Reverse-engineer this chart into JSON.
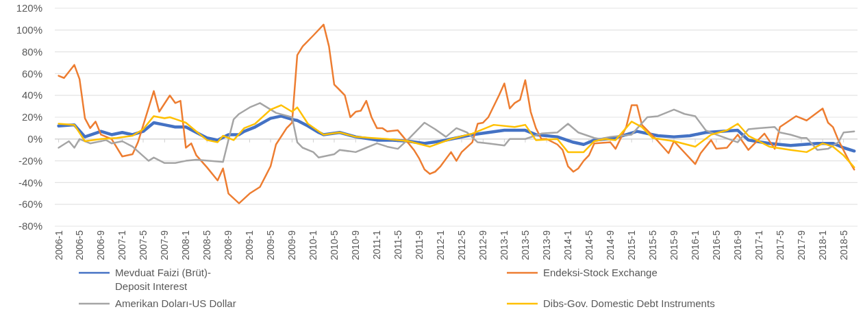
{
  "chart_data": {
    "type": "line",
    "xlim": [
      "2005-12-10",
      "2018-07-20"
    ],
    "xticks": [
      {
        "value": "2006-01",
        "label": "2006-1"
      },
      {
        "value": "2006-05",
        "label": "2006-5"
      },
      {
        "value": "2006-09",
        "label": "2006-9"
      },
      {
        "value": "2007-01",
        "label": "2007-1"
      },
      {
        "value": "2007-05",
        "label": "2007-5"
      },
      {
        "value": "2007-09",
        "label": "2007-9"
      },
      {
        "value": "2008-01",
        "label": "2008-1"
      },
      {
        "value": "2008-05",
        "label": "2008-5"
      },
      {
        "value": "2008-09",
        "label": "2008-9"
      },
      {
        "value": "2009-01",
        "label": "2009-1"
      },
      {
        "value": "2009-05",
        "label": "2009-5"
      },
      {
        "value": "2009-09",
        "label": "2009-9"
      },
      {
        "value": "2010-01",
        "label": "2010-1"
      },
      {
        "value": "2010-05",
        "label": "2010-5"
      },
      {
        "value": "2010-09",
        "label": "2010-9"
      },
      {
        "value": "2011-01",
        "label": "2011-1"
      },
      {
        "value": "2011-05",
        "label": "2011-5"
      },
      {
        "value": "2011-09",
        "label": "2011-9"
      },
      {
        "value": "2012-01",
        "label": "2012-1"
      },
      {
        "value": "2012-05",
        "label": "2012-5"
      },
      {
        "value": "2012-09",
        "label": "2012-9"
      },
      {
        "value": "2013-01",
        "label": "2013-1"
      },
      {
        "value": "2013-05",
        "label": "2013-5"
      },
      {
        "value": "2013-09",
        "label": "2013-9"
      },
      {
        "value": "2014-01",
        "label": "2014-1"
      },
      {
        "value": "2014-05",
        "label": "2014-5"
      },
      {
        "value": "2014-09",
        "label": "2014-9"
      },
      {
        "value": "2015-01",
        "label": "2015-1"
      },
      {
        "value": "2015-05",
        "label": "2015-5"
      },
      {
        "value": "2015-09",
        "label": "2015-9"
      },
      {
        "value": "2016-01",
        "label": "2016-1"
      },
      {
        "value": "2016-05",
        "label": "2016-5"
      },
      {
        "value": "2016-09",
        "label": "2016-9"
      },
      {
        "value": "2017-01",
        "label": "2017-1"
      },
      {
        "value": "2017-05",
        "label": "2017-5"
      },
      {
        "value": "2017-09",
        "label": "2017-9"
      },
      {
        "value": "2018-01",
        "label": "2018-1"
      },
      {
        "value": "2018-05",
        "label": "2018-5"
      }
    ],
    "ylim": [
      -80,
      120
    ],
    "yticks": [
      {
        "value": -80,
        "label": "-80%"
      },
      {
        "value": -60,
        "label": "-60%"
      },
      {
        "value": -40,
        "label": "-40%"
      },
      {
        "value": -20,
        "label": "-20%"
      },
      {
        "value": 0,
        "label": "0%"
      },
      {
        "value": 20,
        "label": "20%"
      },
      {
        "value": 40,
        "label": "40%"
      },
      {
        "value": 60,
        "label": "60%"
      },
      {
        "value": 80,
        "label": "80%"
      },
      {
        "value": 100,
        "label": "100%"
      },
      {
        "value": 120,
        "label": "120%"
      }
    ],
    "grid": "y",
    "legend": "bottom",
    "series": [
      {
        "name": "Mevduat Faizi (Brüt)-Deposit Interest",
        "color": "#4472c4",
        "x": [
          "2006-01",
          "2006-04",
          "2006-06",
          "2006-09",
          "2006-11",
          "2007-01",
          "2007-03",
          "2007-05",
          "2007-07",
          "2007-09",
          "2007-11",
          "2008-01",
          "2008-03",
          "2008-05",
          "2008-07",
          "2008-09",
          "2008-11",
          "2008-12",
          "2009-02",
          "2009-05",
          "2009-07",
          "2009-09",
          "2009-10",
          "2009-12",
          "2010-02",
          "2010-03",
          "2010-06",
          "2010-09",
          "2011-01",
          "2011-04",
          "2011-07",
          "2011-10",
          "2012-01",
          "2012-04",
          "2012-07",
          "2012-10",
          "2013-01",
          "2013-05",
          "2013-07",
          "2013-11",
          "2014-02",
          "2014-04",
          "2014-06",
          "2014-10",
          "2015-02",
          "2015-06",
          "2015-09",
          "2015-12",
          "2016-03",
          "2016-09",
          "2016-11",
          "2017-03",
          "2017-07",
          "2017-12",
          "2018-03",
          "2018-05",
          "2018-07"
        ],
        "values": [
          12,
          13,
          2,
          7,
          4,
          6,
          4,
          7,
          15,
          13,
          11,
          11,
          6,
          1,
          -1,
          4,
          4,
          7,
          11,
          19,
          21,
          18,
          17,
          12,
          6,
          4,
          6,
          2,
          -1,
          -1,
          -2,
          -4,
          -2,
          1,
          4,
          6,
          8,
          8,
          4,
          2,
          -3,
          -5,
          -1,
          1,
          7,
          3,
          2,
          3,
          6,
          8,
          -1,
          -4,
          -6,
          -4,
          -4,
          -8,
          -11
        ]
      },
      {
        "name": "Endeksi-Stock Exchange",
        "color": "#ed7d31",
        "x": [
          "2006-01",
          "2006-02",
          "2006-04",
          "2006-05",
          "2006-06",
          "2006-07",
          "2006-08",
          "2006-09",
          "2006-11",
          "2007-01",
          "2007-03",
          "2007-04",
          "2007-07",
          "2007-08",
          "2007-10",
          "2007-11",
          "2007-12",
          "2008-01",
          "2008-02",
          "2008-03",
          "2008-05",
          "2008-07",
          "2008-08",
          "2008-09",
          "2008-11",
          "2009-01",
          "2009-03",
          "2009-05",
          "2009-06",
          "2009-08",
          "2009-09",
          "2009-10",
          "2009-11",
          "2010-01",
          "2010-03",
          "2010-04",
          "2010-05",
          "2010-06",
          "2010-07",
          "2010-08",
          "2010-09",
          "2010-10",
          "2010-11",
          "2010-12",
          "2011-01",
          "2011-02",
          "2011-03",
          "2011-05",
          "2011-06",
          "2011-08",
          "2011-09",
          "2011-10",
          "2011-11",
          "2011-12",
          "2012-01",
          "2012-03",
          "2012-04",
          "2012-05",
          "2012-07",
          "2012-08",
          "2012-09",
          "2012-10",
          "2012-12",
          "2013-01",
          "2013-02",
          "2013-03",
          "2013-04",
          "2013-05",
          "2013-06",
          "2013-07",
          "2013-08",
          "2013-09",
          "2013-11",
          "2013-12",
          "2014-01",
          "2014-02",
          "2014-03",
          "2014-04",
          "2014-05",
          "2014-06",
          "2014-09",
          "2014-10",
          "2014-12",
          "2015-01",
          "2015-02",
          "2015-03",
          "2015-06",
          "2015-08",
          "2015-09",
          "2016-01",
          "2016-02",
          "2016-04",
          "2016-05",
          "2016-07",
          "2016-09",
          "2016-11",
          "2017-02",
          "2017-04",
          "2017-05",
          "2017-08",
          "2017-10",
          "2018-01",
          "2018-02",
          "2018-03",
          "2018-04",
          "2018-06",
          "2018-07"
        ],
        "values": [
          58,
          56,
          68,
          55,
          19,
          10,
          16,
          4,
          0,
          -16,
          -14,
          -3,
          44,
          25,
          40,
          33,
          35,
          -8,
          -4,
          -15,
          -26,
          -38,
          -27,
          -50,
          -59,
          -50,
          -44,
          -25,
          -5,
          10,
          15,
          77,
          85,
          95,
          105,
          85,
          50,
          45,
          40,
          20,
          25,
          26,
          35,
          20,
          10,
          10,
          7,
          8,
          2,
          -10,
          -18,
          -28,
          -32,
          -30,
          -25,
          -12,
          -20,
          -12,
          -3,
          14,
          15,
          20,
          40,
          51,
          28,
          33,
          36,
          54,
          25,
          10,
          0,
          0,
          -5,
          -10,
          -25,
          -30,
          -27,
          -20,
          -15,
          -4,
          -3,
          -9,
          11,
          31,
          31,
          13,
          -2,
          -13,
          -2,
          -23,
          -13,
          -1,
          -9,
          -8,
          4,
          -10,
          5,
          -9,
          11,
          21,
          17,
          28,
          15,
          11,
          -1,
          -20,
          -28
        ]
      },
      {
        "name": "Amerikan Doları-US Dollar",
        "color": "#a5a5a5",
        "x": [
          "2006-01",
          "2006-03",
          "2006-04",
          "2006-05",
          "2006-07",
          "2006-10",
          "2006-11",
          "2007-01",
          "2007-03",
          "2007-06",
          "2007-07",
          "2007-09",
          "2007-11",
          "2008-01",
          "2008-03",
          "2008-08",
          "2008-09",
          "2008-10",
          "2008-11",
          "2009-01",
          "2009-03",
          "2009-06",
          "2009-09",
          "2009-10",
          "2009-11",
          "2010-01",
          "2010-02",
          "2010-05",
          "2010-06",
          "2010-09",
          "2010-11",
          "2011-01",
          "2011-03",
          "2011-05",
          "2011-07",
          "2011-10",
          "2011-12",
          "2012-02",
          "2012-04",
          "2012-06",
          "2012-08",
          "2012-10",
          "2013-01",
          "2013-02",
          "2013-05",
          "2013-08",
          "2013-11",
          "2014-01",
          "2014-03",
          "2014-06",
          "2014-07",
          "2014-09",
          "2015-01",
          "2015-04",
          "2015-06",
          "2015-09",
          "2015-11",
          "2016-01",
          "2016-03",
          "2016-05",
          "2016-09",
          "2016-11",
          "2017-01",
          "2017-04",
          "2017-05",
          "2017-07",
          "2017-09",
          "2017-10",
          "2017-12",
          "2018-02",
          "2018-04",
          "2018-05",
          "2018-07"
        ],
        "values": [
          -8,
          -2,
          -8,
          0,
          -4,
          -1,
          -4,
          -2,
          -7,
          -20,
          -17,
          -22,
          -22,
          -20,
          -19,
          -21,
          -1,
          18,
          23,
          29,
          33,
          24,
          20,
          -3,
          -8,
          -12,
          -17,
          -14,
          -10,
          -12,
          -8,
          -4,
          -7,
          -9,
          0,
          15,
          9,
          2,
          10,
          6,
          -3,
          -4,
          -6,
          0,
          0,
          5,
          6,
          14,
          6,
          1,
          0,
          2,
          4,
          20,
          21,
          27,
          23,
          21,
          8,
          4,
          -3,
          9,
          10,
          11,
          6,
          4,
          1,
          1,
          -10,
          -9,
          -3,
          6,
          7
        ]
      },
      {
        "name": "Dibs-Gov. Domestic Debt Instruments",
        "color": "#ffc000",
        "x": [
          "2006-01",
          "2006-04",
          "2006-06",
          "2006-09",
          "2006-12",
          "2007-03",
          "2007-05",
          "2007-07",
          "2007-09",
          "2007-10",
          "2008-01",
          "2008-03",
          "2008-05",
          "2008-07",
          "2008-08",
          "2008-10",
          "2008-12",
          "2009-02",
          "2009-05",
          "2009-07",
          "2009-09",
          "2009-10",
          "2009-12",
          "2010-03",
          "2010-06",
          "2010-09",
          "2010-12",
          "2011-03",
          "2011-07",
          "2011-11",
          "2012-03",
          "2012-07",
          "2012-11",
          "2013-03",
          "2013-05",
          "2013-07",
          "2013-11",
          "2014-01",
          "2014-04",
          "2014-06",
          "2014-08",
          "2014-10",
          "2015-01",
          "2015-03",
          "2015-05",
          "2015-09",
          "2016-01",
          "2016-04",
          "2016-07",
          "2016-09",
          "2016-11",
          "2017-03",
          "2017-07",
          "2017-10",
          "2018-01",
          "2018-03",
          "2018-05",
          "2018-07"
        ],
        "values": [
          14,
          13,
          -2,
          0,
          1,
          3,
          9,
          21,
          19,
          20,
          15,
          7,
          -1,
          -3,
          3,
          -1,
          10,
          14,
          27,
          31,
          25,
          29,
          14,
          4,
          6,
          2,
          1,
          0,
          -2,
          -7,
          0,
          5,
          13,
          11,
          13,
          -1,
          0,
          -12,
          -12,
          -2,
          0,
          -1,
          16,
          11,
          1,
          -2,
          -7,
          4,
          8,
          14,
          3,
          -7,
          -10,
          -12,
          -4,
          -7,
          -15,
          -26
        ]
      }
    ]
  }
}
